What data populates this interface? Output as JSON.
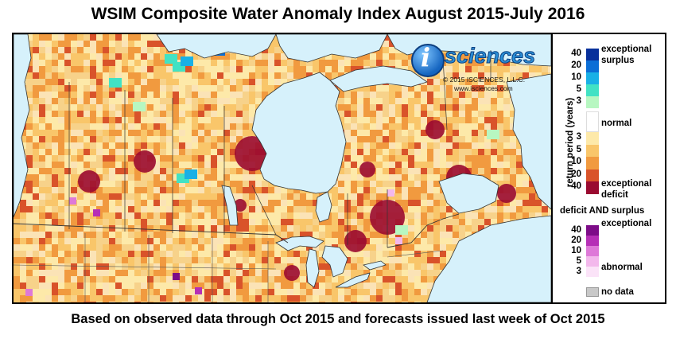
{
  "title": "WSIM Composite Water Anomaly Index August 2015-July 2016",
  "caption": "Based on observed data through Oct 2015 and forecasts issued last week of Oct 2015",
  "logo": {
    "text": "sciences",
    "letter": "i",
    "copyright": "© 2015 ISCIENCES, L.L.C.",
    "url": "www.isciences.com"
  },
  "legend": {
    "axis_label": "return period (years)",
    "surplus_label_1": "exceptional",
    "surplus_label_2": "surplus",
    "normal_label": "normal",
    "deficit_label_1": "exceptional",
    "deficit_label_2": "deficit",
    "both_heading": "deficit AND surplus",
    "both_exceptional": "exceptional",
    "both_abnormal": "abnormal",
    "nodata_label": "no data",
    "surplus_ticks": [
      "40",
      "20",
      "10",
      "5",
      "3"
    ],
    "deficit_ticks": [
      "3",
      "5",
      "10",
      "20",
      "40"
    ],
    "both_ticks": [
      "40",
      "20",
      "10",
      "5",
      "3"
    ],
    "surplus_colors": [
      "#08309b",
      "#0b6ed6",
      "#19b0e6",
      "#42e2c4",
      "#b7f7c1"
    ],
    "normal_color": "#ffffff",
    "deficit_colors": [
      "#fde9a9",
      "#f9c66a",
      "#f19a3f",
      "#d9532a",
      "#9a0a30"
    ],
    "both_colors": [
      "#7d0c88",
      "#b62fb6",
      "#de79d8",
      "#f3b8ec",
      "#fbe3f8"
    ],
    "nodata_color": "#c8c8c8"
  },
  "map_colors": {
    "water": "#d6f1fb",
    "base": "#f6d28d",
    "border": "#333333"
  }
}
